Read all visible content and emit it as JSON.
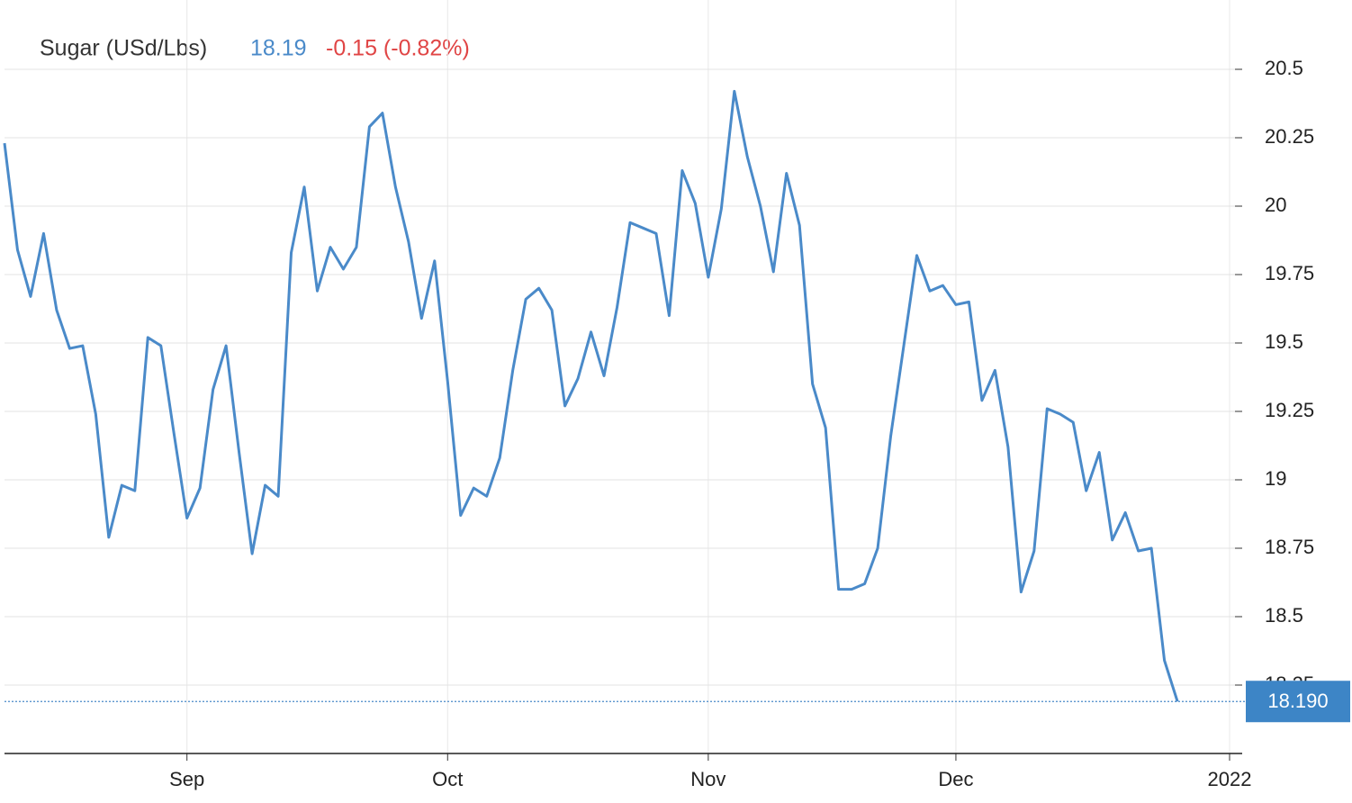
{
  "chart_data": {
    "type": "line",
    "title": "Sugar (USd/Lbs)",
    "price": "18.19",
    "change": "-0.15 (-0.82%)",
    "last_value_label": "18.190",
    "categories": [
      null,
      null,
      null,
      null,
      null,
      null,
      null,
      null,
      null,
      null,
      null,
      null,
      null,
      null,
      "Sep",
      null,
      null,
      null,
      null,
      null,
      null,
      null,
      null,
      null,
      null,
      null,
      null,
      null,
      null,
      null,
      null,
      null,
      null,
      null,
      "Oct",
      null,
      null,
      null,
      null,
      null,
      null,
      null,
      null,
      null,
      null,
      null,
      null,
      null,
      null,
      null,
      null,
      null,
      null,
      null,
      "Nov",
      null,
      null,
      null,
      null,
      null,
      null,
      null,
      null,
      null,
      null,
      null,
      null,
      null,
      null,
      null,
      null,
      null,
      null,
      "Dec",
      null,
      null,
      null,
      null,
      null,
      null,
      null,
      null,
      null,
      null,
      null,
      null,
      null,
      null,
      null,
      null,
      null,
      null,
      null,
      null,
      "2022"
    ],
    "series": [
      {
        "name": "Sugar",
        "color": "#4a8ac9",
        "values": [
          20.23,
          19.84,
          19.67,
          19.9,
          19.62,
          19.48,
          19.49,
          19.24,
          18.79,
          18.98,
          18.96,
          19.52,
          19.49,
          19.17,
          18.86,
          18.97,
          19.33,
          19.49,
          19.1,
          18.73,
          18.98,
          18.94,
          19.83,
          20.07,
          19.69,
          19.85,
          19.77,
          19.85,
          20.29,
          20.34,
          20.07,
          19.87,
          19.59,
          19.8,
          19.36,
          18.87,
          18.97,
          18.94,
          19.08,
          19.4,
          19.66,
          19.7,
          19.62,
          19.27,
          19.37,
          19.54,
          19.38,
          19.63,
          19.94,
          19.92,
          19.9,
          19.6,
          20.13,
          20.01,
          19.74,
          19.99,
          20.42,
          20.18,
          20.0,
          19.76,
          20.12,
          19.93,
          19.35,
          19.19,
          18.6,
          18.6,
          18.62,
          18.75,
          19.16,
          19.49,
          19.82,
          19.69,
          19.71,
          19.64,
          19.65,
          19.29,
          19.4,
          19.12,
          18.59,
          18.74,
          19.26,
          19.24,
          19.21,
          18.96,
          19.1,
          18.78,
          18.88,
          18.74,
          18.75,
          18.34,
          18.19,
          null,
          null,
          null,
          null
        ]
      }
    ],
    "ylim": [
      18,
      20.75
    ],
    "yticks": [
      18.25,
      18.5,
      18.75,
      19,
      19.25,
      19.5,
      19.75,
      20,
      20.25,
      20.5
    ],
    "grid": true
  }
}
